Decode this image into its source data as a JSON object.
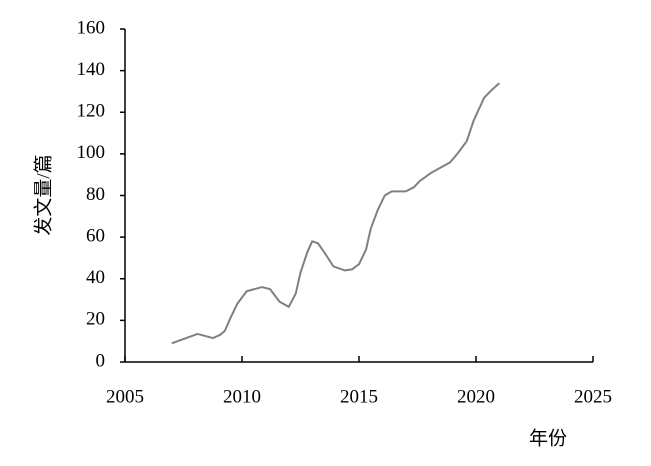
{
  "chart_data": {
    "type": "line",
    "x_label": "年份",
    "y_label": "发文量/篇",
    "x": [
      2007,
      2008.1,
      2008.76,
      2009.06,
      2009.27,
      2009.5,
      2009.8,
      2010.2,
      2010.85,
      2011.2,
      2011.6,
      2012.0,
      2012.3,
      2012.5,
      2012.8,
      2013.0,
      2013.25,
      2013.5,
      2013.9,
      2014.4,
      2014.7,
      2015.0,
      2015.3,
      2015.5,
      2015.8,
      2016.1,
      2016.4,
      2017.0,
      2017.35,
      2017.6,
      2018.1,
      2018.9,
      2019.2,
      2019.6,
      2019.9,
      2020.35,
      2020.7,
      2021.0
    ],
    "series": [
      {
        "color": "#808080",
        "values": [
          9,
          13.5,
          11.5,
          13,
          15,
          21,
          28,
          34,
          36,
          35,
          29,
          26.5,
          33,
          43,
          53,
          58,
          57,
          53,
          46,
          44,
          44.5,
          47,
          54,
          64,
          73,
          80,
          82,
          82,
          84,
          87,
          91,
          96,
          100,
          106,
          116,
          127,
          131,
          134
        ]
      }
    ],
    "xlim": [
      2005,
      2025
    ],
    "xticks": [
      2005,
      2010,
      2015,
      2020,
      2025
    ],
    "ylim": [
      0,
      160
    ],
    "yticks": [
      0,
      20,
      40,
      60,
      80,
      100,
      120,
      140,
      160
    ]
  }
}
